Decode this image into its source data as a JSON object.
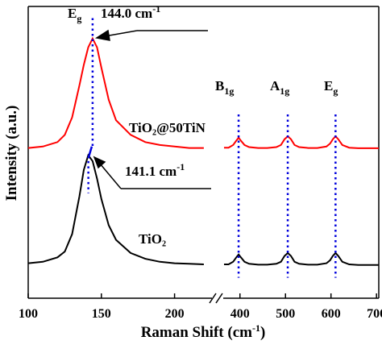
{
  "chart_data": {
    "type": "line",
    "xlabel": {
      "text": "Raman Shift (cm",
      "sup": "-1",
      "tail": ")"
    },
    "ylabel": "Intensity (a.u.)",
    "xlim": [
      [
        100,
        225
      ],
      [
        365,
        705
      ]
    ],
    "xticks": [
      [
        100,
        150,
        200
      ],
      [
        400,
        500,
        600,
        700
      ]
    ],
    "ylim": [
      0,
      100
    ],
    "x": [
      100,
      110,
      120,
      125,
      130,
      135,
      138,
      141,
      144,
      147,
      150,
      155,
      160,
      170,
      180,
      190,
      200,
      210,
      220,
      365,
      375,
      385,
      392,
      397,
      402,
      410,
      420,
      440,
      460,
      480,
      490,
      498,
      505,
      512,
      520,
      530,
      550,
      570,
      590,
      598,
      604,
      610,
      616,
      625,
      640,
      660,
      680,
      705
    ],
    "series": [
      {
        "name": "TiO₂@50TiN",
        "color": "#ff0000",
        "values": [
          51.5,
          52,
          53.5,
          56,
          62,
          73,
          80,
          86,
          89,
          86,
          79,
          68,
          61,
          56,
          53.5,
          52.5,
          52,
          51.5,
          51.5,
          51.6,
          51.6,
          52.5,
          54,
          55,
          54,
          52.5,
          51.8,
          51.5,
          51.5,
          51.8,
          52.5,
          54.5,
          55.5,
          54.5,
          52.5,
          51.8,
          51.5,
          51.5,
          52,
          53,
          54.5,
          55.5,
          54.5,
          52.5,
          51.6,
          51.4,
          51.4,
          51.4
        ]
      },
      {
        "name": "TiO₂",
        "color": "#000000",
        "values": [
          12,
          12.5,
          14,
          16,
          22,
          35,
          44,
          49,
          47,
          41,
          34,
          25,
          20,
          15.5,
          13.5,
          12.5,
          12,
          11.8,
          11.6,
          11.6,
          11.6,
          12.5,
          14,
          15,
          14,
          12.5,
          11.8,
          11.5,
          11.5,
          11.8,
          12.5,
          14.5,
          15.5,
          14.5,
          12.5,
          11.8,
          11.5,
          11.5,
          12,
          13,
          14.5,
          15.5,
          14.5,
          12.5,
          11.6,
          11.4,
          11.4,
          11.4
        ]
      }
    ],
    "annotations": [
      {
        "text": "E",
        "sub": "g",
        "x": 144.0
      },
      {
        "text": "144.0 cm",
        "sup": "-1"
      },
      {
        "text": "141.1 cm",
        "sup": "-1",
        "x": 141.1
      },
      {
        "text": "B",
        "sub": "1g",
        "x": 397
      },
      {
        "text": "A",
        "sub": "1g",
        "x": 505
      },
      {
        "text": "E",
        "sub": "g",
        "x": 610
      }
    ]
  }
}
